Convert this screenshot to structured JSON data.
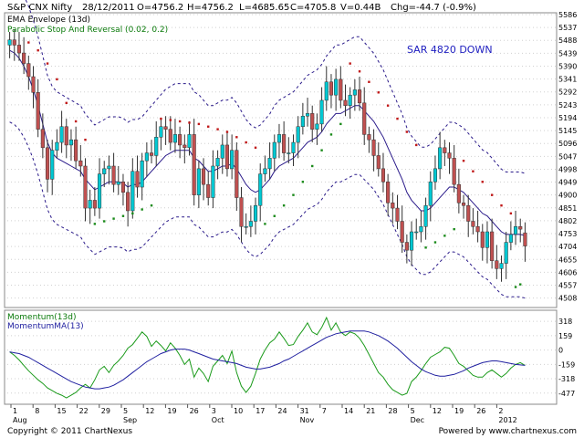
{
  "header": {
    "symbol": "S&P CNX Nifty",
    "date": "28/12/2011",
    "open": "O=4756.2",
    "high": "H=4756.2",
    "low": "L=4685.65",
    "close": "C=4705.8",
    "volume": "V=0.44B",
    "change": "Chg=-44.7 (-0.9%)"
  },
  "footer": {
    "copyright": "Copyright © 2011 ChartNexus",
    "powered": "Powered by www.chartnexus.com"
  },
  "colors": {
    "up": "#00c8d2",
    "down": "#c05050",
    "ema": "#2a1a8a",
    "sar": "#c01818",
    "sar_bull": "#1a8a1a",
    "momentum": "#1a9a1a",
    "momentum_ma": "#2020a0",
    "grid": "#d0d0d0",
    "annotation": "#2020c0"
  },
  "chart_data": [
    {
      "type": "candlestick",
      "legend": [
        "EMA Envelope (13d)",
        "Parabolic Stop And Reversal (0.02, 0.2)"
      ],
      "annotation": "SAR 4820 DOWN",
      "y_ticks": [
        5586,
        5537,
        5488,
        5439,
        5390,
        5341,
        5292,
        5243,
        5194,
        5145,
        5096,
        5047,
        4998,
        4949,
        4900,
        4851,
        4802,
        4753,
        4704,
        4655,
        4606,
        4557,
        4508
      ],
      "ylim": [
        4479,
        5586
      ],
      "x_day_labels": [
        "1",
        "8",
        "15",
        "22",
        "29",
        "5",
        "12",
        "19",
        "26",
        "3",
        "10",
        "17",
        "24",
        "31",
        "7",
        "14",
        "21",
        "28",
        "5",
        "12",
        "19",
        "26",
        "2"
      ],
      "x_month_labels": [
        "Aug",
        "Sep",
        "Oct",
        "Nov",
        "Dec",
        "2012"
      ],
      "closes": [
        5490,
        5470,
        5440,
        5400,
        5350,
        5290,
        5150,
        5080,
        4960,
        5070,
        5100,
        5160,
        5090,
        5110,
        5030,
        5010,
        4850,
        4880,
        4850,
        4980,
        5000,
        5010,
        4940,
        4950,
        4910,
        4840,
        4990,
        4930,
        5030,
        5060,
        5050,
        5120,
        5160,
        5150,
        5100,
        5130,
        5090,
        5080,
        5130,
        4900,
        5000,
        4940,
        4890,
        5010,
        5040,
        5090,
        5000,
        5070,
        4890,
        4780,
        4780,
        4800,
        4860,
        4980,
        5000,
        5040,
        5100,
        5130,
        5060,
        5060,
        5100,
        5160,
        5200,
        5210,
        5150,
        5170,
        5260,
        5330,
        5280,
        5340,
        5260,
        5240,
        5280,
        5300,
        5250,
        5130,
        5110,
        5050,
        5000,
        4950,
        4870,
        4850,
        4800,
        4720,
        4690,
        4760,
        4760,
        4780,
        4860,
        4950,
        5000,
        5080,
        5060,
        5040,
        4940,
        4870,
        4860,
        4800,
        4780,
        4760,
        4700,
        4760,
        4650,
        4620,
        4640,
        4720,
        4750,
        4780,
        4770,
        4706
      ],
      "opens": [
        5470,
        5490,
        5470,
        5440,
        5400,
        5350,
        5290,
        5150,
        5080,
        4960,
        5070,
        5100,
        5160,
        5090,
        5110,
        5030,
        5010,
        4850,
        4880,
        4850,
        4980,
        5000,
        5010,
        4940,
        4950,
        4910,
        4840,
        4990,
        4930,
        5030,
        5060,
        5050,
        5120,
        5160,
        5150,
        5100,
        5130,
        5090,
        5080,
        5130,
        4900,
        5000,
        4940,
        4890,
        5010,
        5040,
        5090,
        5000,
        5070,
        4890,
        4780,
        4780,
        4800,
        4860,
        4980,
        5000,
        5040,
        5100,
        5130,
        5060,
        5060,
        5100,
        5160,
        5200,
        5210,
        5150,
        5170,
        5260,
        5330,
        5280,
        5340,
        5260,
        5240,
        5280,
        5300,
        5250,
        5130,
        5110,
        5050,
        5000,
        4950,
        4870,
        4850,
        4800,
        4720,
        4690,
        4760,
        4760,
        4780,
        4860,
        4950,
        5000,
        5080,
        5060,
        5040,
        4940,
        4870,
        4860,
        4800,
        4780,
        4760,
        4700,
        4760,
        4650,
        4620,
        4640,
        4720,
        4750,
        4780,
        4756
      ],
      "ema": [
        5450,
        5440,
        5420,
        5390,
        5350,
        5300,
        5240,
        5170,
        5100,
        5060,
        5040,
        5030,
        5020,
        5010,
        5000,
        4990,
        4960,
        4940,
        4920,
        4930,
        4940,
        4950,
        4950,
        4950,
        4945,
        4930,
        4940,
        4940,
        4950,
        4970,
        4990,
        5010,
        5030,
        5050,
        5060,
        5070,
        5070,
        5070,
        5070,
        5040,
        5030,
        5010,
        4990,
        4990,
        5000,
        5010,
        5010,
        5020,
        5000,
        4970,
        4940,
        4920,
        4910,
        4920,
        4940,
        4960,
        4990,
        5010,
        5020,
        5030,
        5040,
        5060,
        5080,
        5100,
        5110,
        5120,
        5140,
        5170,
        5190,
        5210,
        5210,
        5220,
        5230,
        5240,
        5240,
        5220,
        5200,
        5180,
        5150,
        5120,
        5080,
        5040,
        5000,
        4960,
        4910,
        4880,
        4860,
        4840,
        4840,
        4850,
        4870,
        4890,
        4910,
        4930,
        4930,
        4920,
        4910,
        4890,
        4870,
        4850,
        4830,
        4820,
        4800,
        4780,
        4760,
        4750,
        4750,
        4750,
        4750,
        4745
      ],
      "envelope_pct": 0.05,
      "sar": [
        {
          "i": 4,
          "v": 5480,
          "dir": "down"
        },
        {
          "i": 6,
          "v": 5450,
          "dir": "down"
        },
        {
          "i": 8,
          "v": 5400,
          "dir": "down"
        },
        {
          "i": 10,
          "v": 5340,
          "dir": "down"
        },
        {
          "i": 12,
          "v": 5250,
          "dir": "down"
        },
        {
          "i": 14,
          "v": 5180,
          "dir": "down"
        },
        {
          "i": 16,
          "v": 5110,
          "dir": "down"
        },
        {
          "i": 18,
          "v": 4790,
          "dir": "up"
        },
        {
          "i": 20,
          "v": 4800,
          "dir": "up"
        },
        {
          "i": 22,
          "v": 4810,
          "dir": "up"
        },
        {
          "i": 24,
          "v": 4820,
          "dir": "up"
        },
        {
          "i": 26,
          "v": 4830,
          "dir": "up"
        },
        {
          "i": 28,
          "v": 4845,
          "dir": "up"
        },
        {
          "i": 30,
          "v": 4860,
          "dir": "up"
        },
        {
          "i": 32,
          "v": 5190,
          "dir": "down"
        },
        {
          "i": 34,
          "v": 5185,
          "dir": "down"
        },
        {
          "i": 36,
          "v": 5180,
          "dir": "down"
        },
        {
          "i": 38,
          "v": 5175,
          "dir": "down"
        },
        {
          "i": 40,
          "v": 5170,
          "dir": "down"
        },
        {
          "i": 42,
          "v": 5160,
          "dir": "down"
        },
        {
          "i": 44,
          "v": 5150,
          "dir": "down"
        },
        {
          "i": 46,
          "v": 5140,
          "dir": "down"
        },
        {
          "i": 48,
          "v": 5120,
          "dir": "down"
        },
        {
          "i": 50,
          "v": 5100,
          "dir": "down"
        },
        {
          "i": 52,
          "v": 5080,
          "dir": "down"
        },
        {
          "i": 54,
          "v": 4790,
          "dir": "up"
        },
        {
          "i": 56,
          "v": 4820,
          "dir": "up"
        },
        {
          "i": 58,
          "v": 4860,
          "dir": "up"
        },
        {
          "i": 60,
          "v": 4900,
          "dir": "up"
        },
        {
          "i": 62,
          "v": 4950,
          "dir": "up"
        },
        {
          "i": 64,
          "v": 5010,
          "dir": "up"
        },
        {
          "i": 66,
          "v": 5070,
          "dir": "up"
        },
        {
          "i": 68,
          "v": 5130,
          "dir": "up"
        },
        {
          "i": 70,
          "v": 5170,
          "dir": "up"
        },
        {
          "i": 72,
          "v": 5400,
          "dir": "down"
        },
        {
          "i": 74,
          "v": 5370,
          "dir": "down"
        },
        {
          "i": 76,
          "v": 5330,
          "dir": "down"
        },
        {
          "i": 78,
          "v": 5290,
          "dir": "down"
        },
        {
          "i": 80,
          "v": 5240,
          "dir": "down"
        },
        {
          "i": 82,
          "v": 5190,
          "dir": "down"
        },
        {
          "i": 84,
          "v": 5140,
          "dir": "down"
        },
        {
          "i": 86,
          "v": 5090,
          "dir": "down"
        },
        {
          "i": 88,
          "v": 4700,
          "dir": "up"
        },
        {
          "i": 90,
          "v": 4720,
          "dir": "up"
        },
        {
          "i": 92,
          "v": 4745,
          "dir": "up"
        },
        {
          "i": 94,
          "v": 4770,
          "dir": "up"
        },
        {
          "i": 96,
          "v": 5030,
          "dir": "down"
        },
        {
          "i": 98,
          "v": 4990,
          "dir": "down"
        },
        {
          "i": 100,
          "v": 4950,
          "dir": "down"
        },
        {
          "i": 102,
          "v": 4900,
          "dir": "down"
        },
        {
          "i": 104,
          "v": 4860,
          "dir": "down"
        },
        {
          "i": 106,
          "v": 4830,
          "dir": "down"
        },
        {
          "i": 107,
          "v": 4550,
          "dir": "up"
        },
        {
          "i": 108,
          "v": 4560,
          "dir": "up"
        }
      ]
    },
    {
      "type": "line",
      "legend": [
        "Momentum(13d)",
        "MomentumMA(13)"
      ],
      "y_ticks": [
        318,
        159,
        0,
        -159,
        -318,
        -477
      ],
      "ylim": [
        -560,
        400
      ],
      "series": [
        {
          "name": "Momentum(13d)",
          "values": [
            -20,
            -60,
            -110,
            -170,
            -230,
            -280,
            -330,
            -370,
            -420,
            -450,
            -480,
            -500,
            -530,
            -500,
            -470,
            -420,
            -380,
            -420,
            -330,
            -220,
            -180,
            -250,
            -170,
            -120,
            -60,
            20,
            60,
            130,
            200,
            150,
            40,
            100,
            50,
            -10,
            80,
            20,
            -60,
            -160,
            -100,
            -300,
            -200,
            -260,
            -350,
            -180,
            -120,
            -60,
            -150,
            -10,
            -250,
            -400,
            -470,
            -400,
            -260,
            -100,
            0,
            80,
            120,
            200,
            130,
            50,
            60,
            150,
            220,
            300,
            200,
            170,
            250,
            360,
            220,
            300,
            200,
            160,
            200,
            180,
            130,
            50,
            -50,
            -150,
            -250,
            -300,
            -380,
            -440,
            -470,
            -500,
            -480,
            -350,
            -300,
            -230,
            -150,
            -80,
            -50,
            -20,
            30,
            20,
            -60,
            -150,
            -180,
            -230,
            -280,
            -300,
            -300,
            -250,
            -220,
            -260,
            -300,
            -260,
            -200,
            -160,
            -140,
            -170
          ]
        },
        {
          "name": "MomentumMA(13)",
          "values": [
            -20,
            -30,
            -40,
            -60,
            -80,
            -110,
            -140,
            -170,
            -200,
            -230,
            -260,
            -290,
            -320,
            -350,
            -370,
            -390,
            -410,
            -420,
            -430,
            -430,
            -420,
            -410,
            -390,
            -360,
            -330,
            -290,
            -250,
            -210,
            -170,
            -130,
            -100,
            -70,
            -40,
            -20,
            0,
            10,
            10,
            10,
            0,
            -20,
            -40,
            -60,
            -80,
            -100,
            -110,
            -120,
            -130,
            -140,
            -150,
            -170,
            -190,
            -200,
            -210,
            -210,
            -200,
            -190,
            -170,
            -150,
            -120,
            -100,
            -70,
            -40,
            -10,
            20,
            50,
            80,
            110,
            140,
            160,
            180,
            190,
            200,
            210,
            210,
            210,
            210,
            200,
            180,
            160,
            130,
            100,
            60,
            20,
            -30,
            -80,
            -130,
            -170,
            -210,
            -240,
            -260,
            -280,
            -290,
            -290,
            -280,
            -270,
            -250,
            -230,
            -200,
            -180,
            -160,
            -140,
            -130,
            -120,
            -120,
            -130,
            -140,
            -150,
            -160,
            -165,
            -170
          ]
        }
      ]
    }
  ]
}
